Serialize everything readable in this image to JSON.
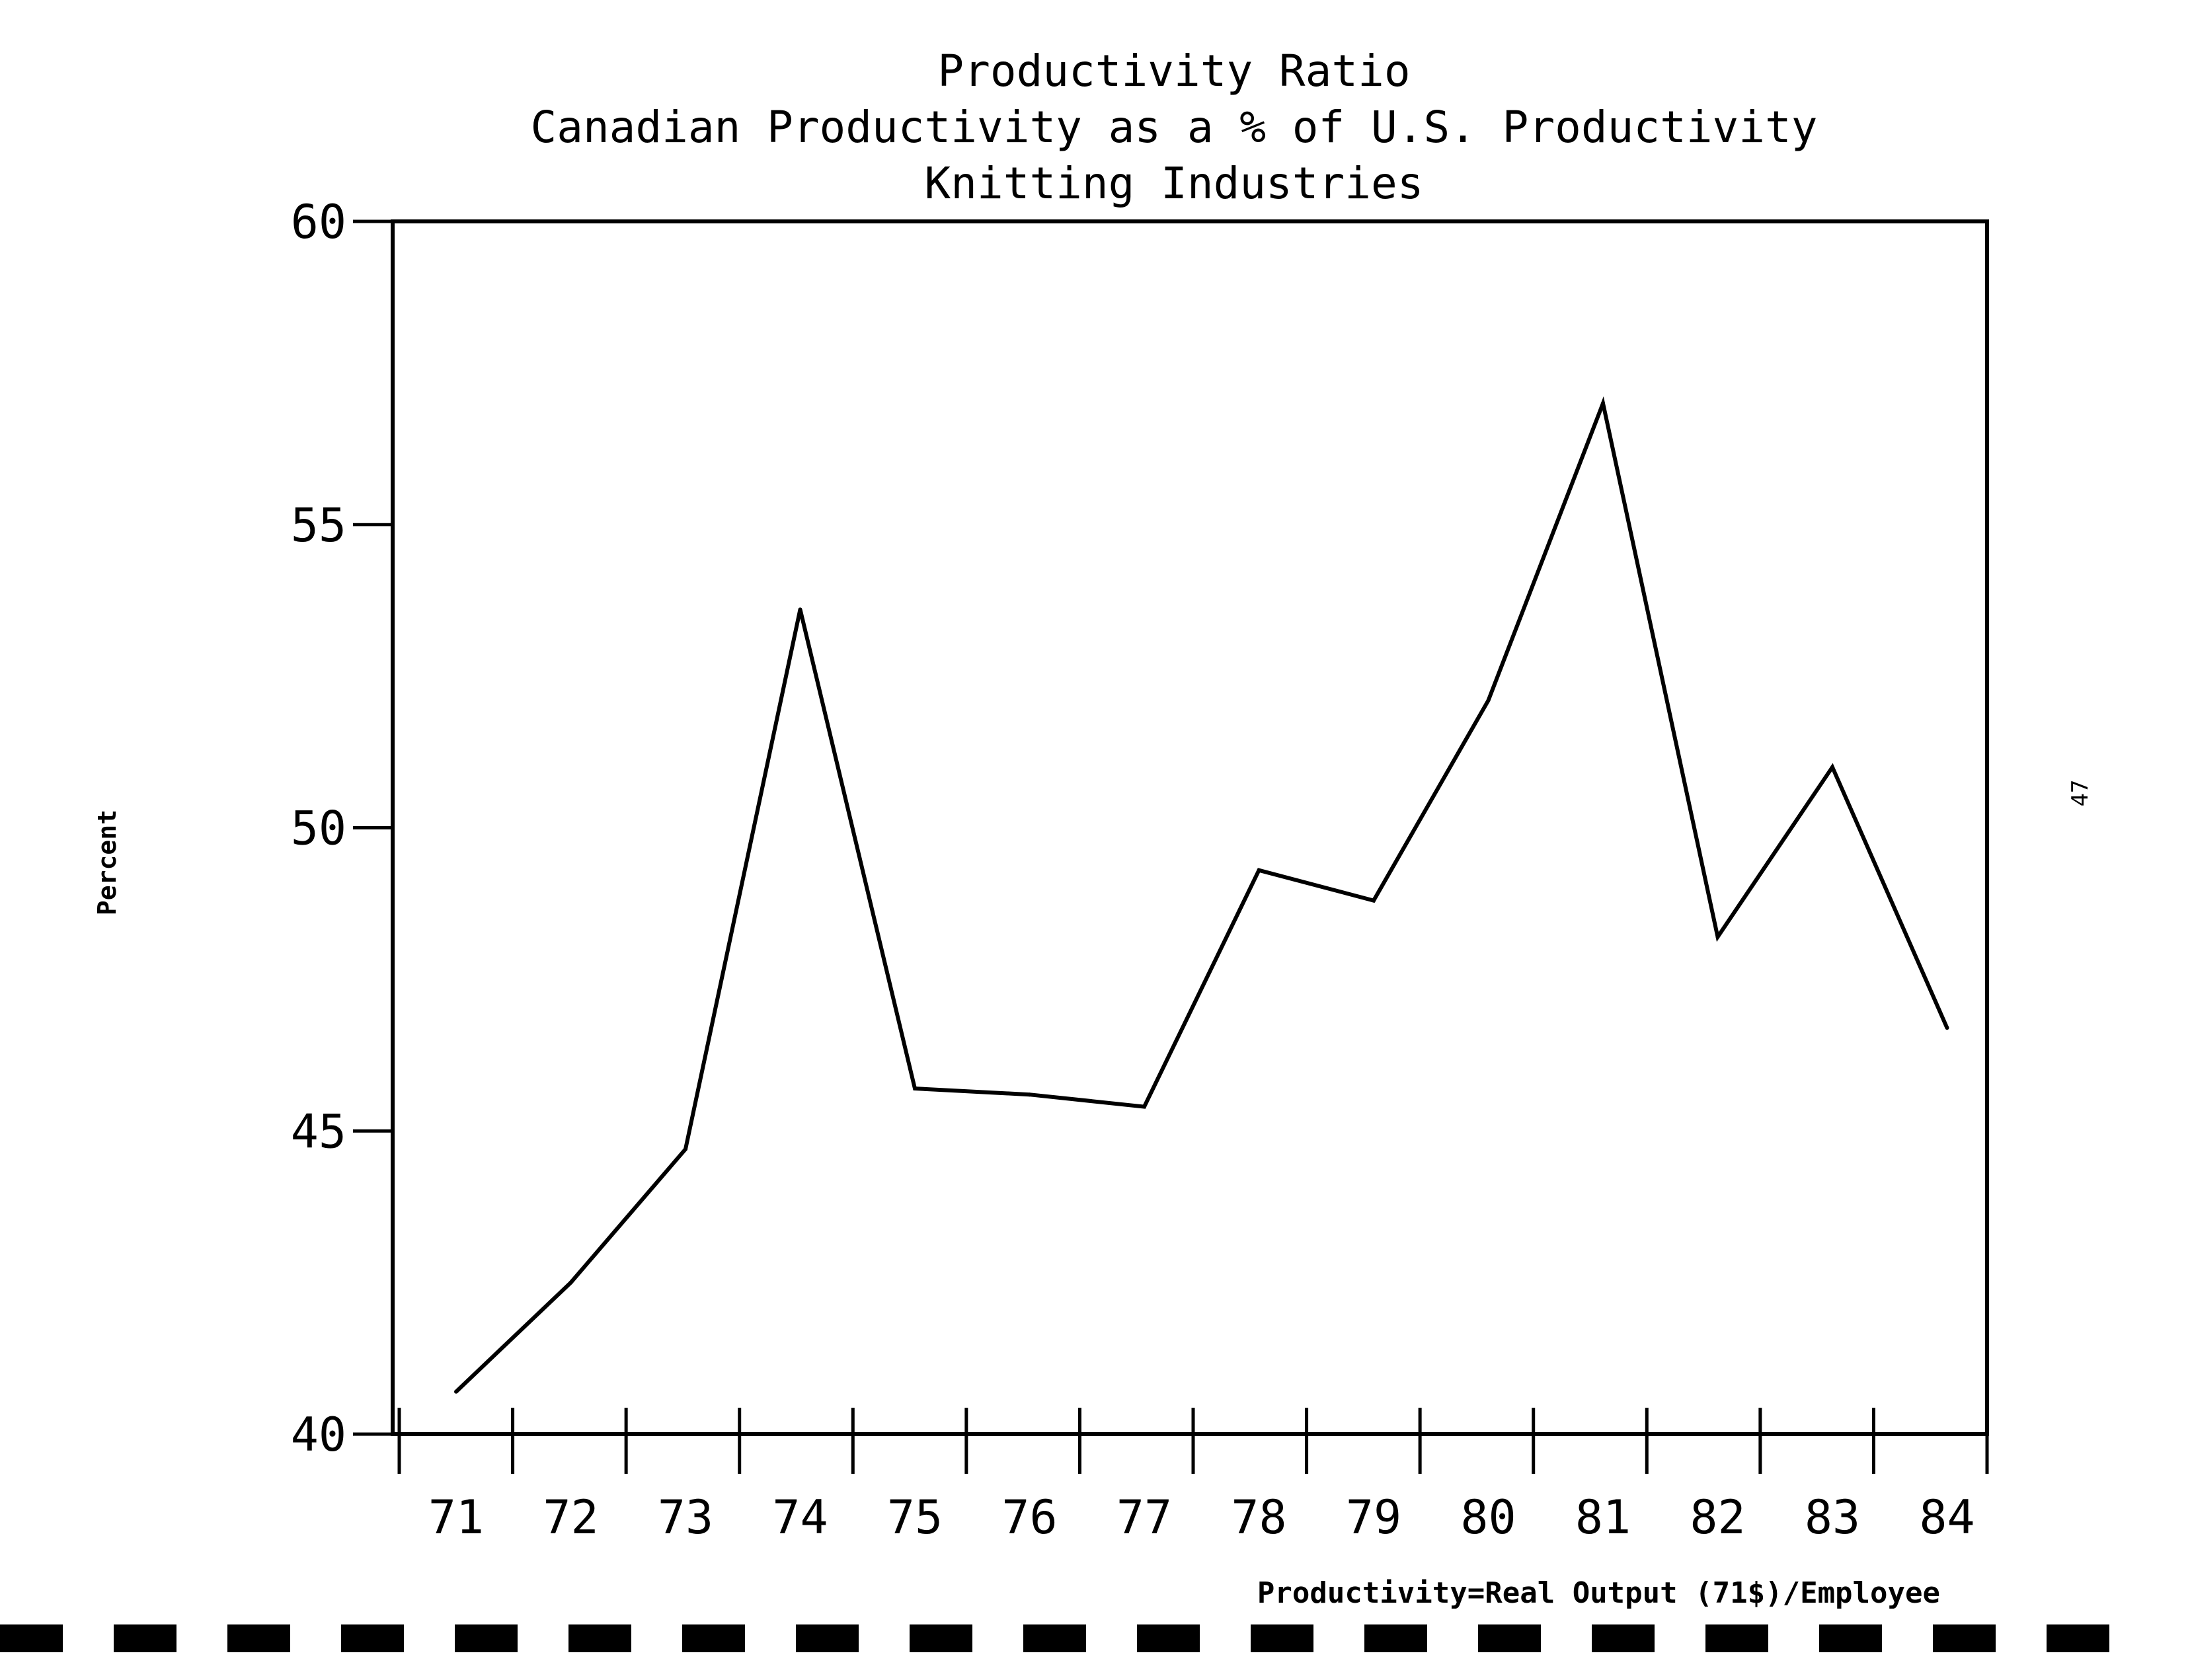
{
  "chart_data": {
    "type": "line",
    "title": "Productivity Ratio",
    "subtitle": "Canadian Productivity as a % of U.S. Productivity",
    "subtitle2": "Knitting Industries",
    "ylabel": "Percent",
    "xlabel": "",
    "footnote": "Productivity=Real Output (71$)/Employee",
    "page_number": "47",
    "categories": [
      "71",
      "72",
      "73",
      "74",
      "75",
      "76",
      "77",
      "78",
      "79",
      "80",
      "81",
      "82",
      "83",
      "84"
    ],
    "series": [
      {
        "values": [
          40.7,
          42.5,
          44.7,
          53.6,
          45.7,
          45.6,
          45.4,
          49.3,
          48.8,
          52.1,
          57.0,
          48.2,
          51.0,
          46.7
        ]
      }
    ],
    "yticks": [
      "40",
      "45",
      "50",
      "55",
      "60"
    ],
    "ylim": [
      40,
      60
    ],
    "grid": false,
    "legend": "none",
    "line_color": "#000000"
  }
}
